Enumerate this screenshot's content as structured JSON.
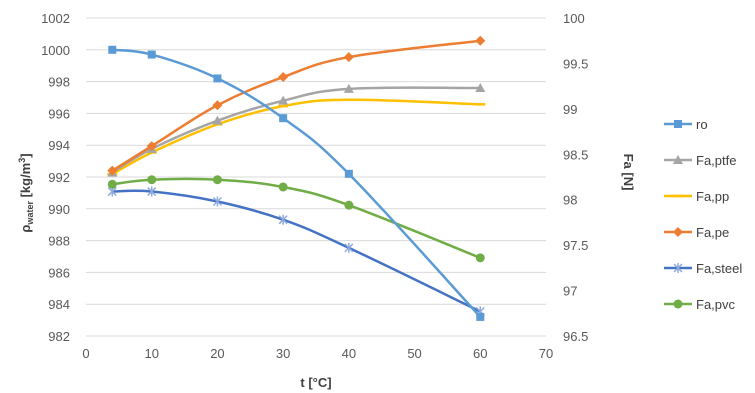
{
  "chart_data": {
    "type": "line",
    "xlabel": "t [°C]",
    "ylabel": {
      "main": "ρ",
      "sub": "water",
      "unit_prefix": " [kg/m",
      "unit_sup": "3",
      "unit_suffix": "]"
    },
    "y2label": "Fa [N]",
    "xlim": [
      0,
      70
    ],
    "ylim": [
      982,
      1002
    ],
    "y2lim": [
      96.5,
      100
    ],
    "xticks": [
      "0",
      "10",
      "20",
      "30",
      "40",
      "50",
      "60",
      "70"
    ],
    "yticks": [
      "982",
      "984",
      "986",
      "988",
      "990",
      "992",
      "994",
      "996",
      "998",
      "1000",
      "1002"
    ],
    "y2ticks": [
      "96.5",
      "97",
      "97.5",
      "98",
      "98.5",
      "99",
      "99.5",
      "100"
    ],
    "grid": true,
    "legend": "right",
    "x": [
      4,
      10,
      20,
      30,
      40,
      60
    ],
    "series": [
      {
        "name": "ro",
        "axis": "left",
        "color": "#5B9BD5",
        "marker": "square",
        "values": [
          1000.0,
          999.7,
          998.2,
          995.7,
          992.2,
          983.2
        ]
      },
      {
        "name": "Fa,ptfe",
        "axis": "right",
        "color": "#A5A5A5",
        "marker": "triangle",
        "values": [
          98.3,
          98.56,
          98.87,
          99.09,
          99.22,
          99.23
        ]
      },
      {
        "name": "Fa,pp",
        "axis": "right",
        "color": "#FFC000",
        "marker": "dash",
        "values": [
          98.28,
          98.52,
          98.83,
          99.03,
          99.1,
          99.05
        ]
      },
      {
        "name": "Fa,pe",
        "axis": "right",
        "color": "#ED7D31",
        "marker": "diamond",
        "values": [
          98.32,
          98.59,
          99.04,
          99.35,
          99.57,
          99.75
        ]
      },
      {
        "name": "Fa,steel",
        "axis": "right",
        "color": "#4472C4",
        "marker": "star",
        "values": [
          98.09,
          98.09,
          97.98,
          97.78,
          97.47,
          96.77
        ]
      },
      {
        "name": "Fa,pvc",
        "axis": "right",
        "color": "#70AD47",
        "marker": "circle",
        "values": [
          98.17,
          98.22,
          98.22,
          98.14,
          97.94,
          97.36
        ]
      }
    ]
  }
}
